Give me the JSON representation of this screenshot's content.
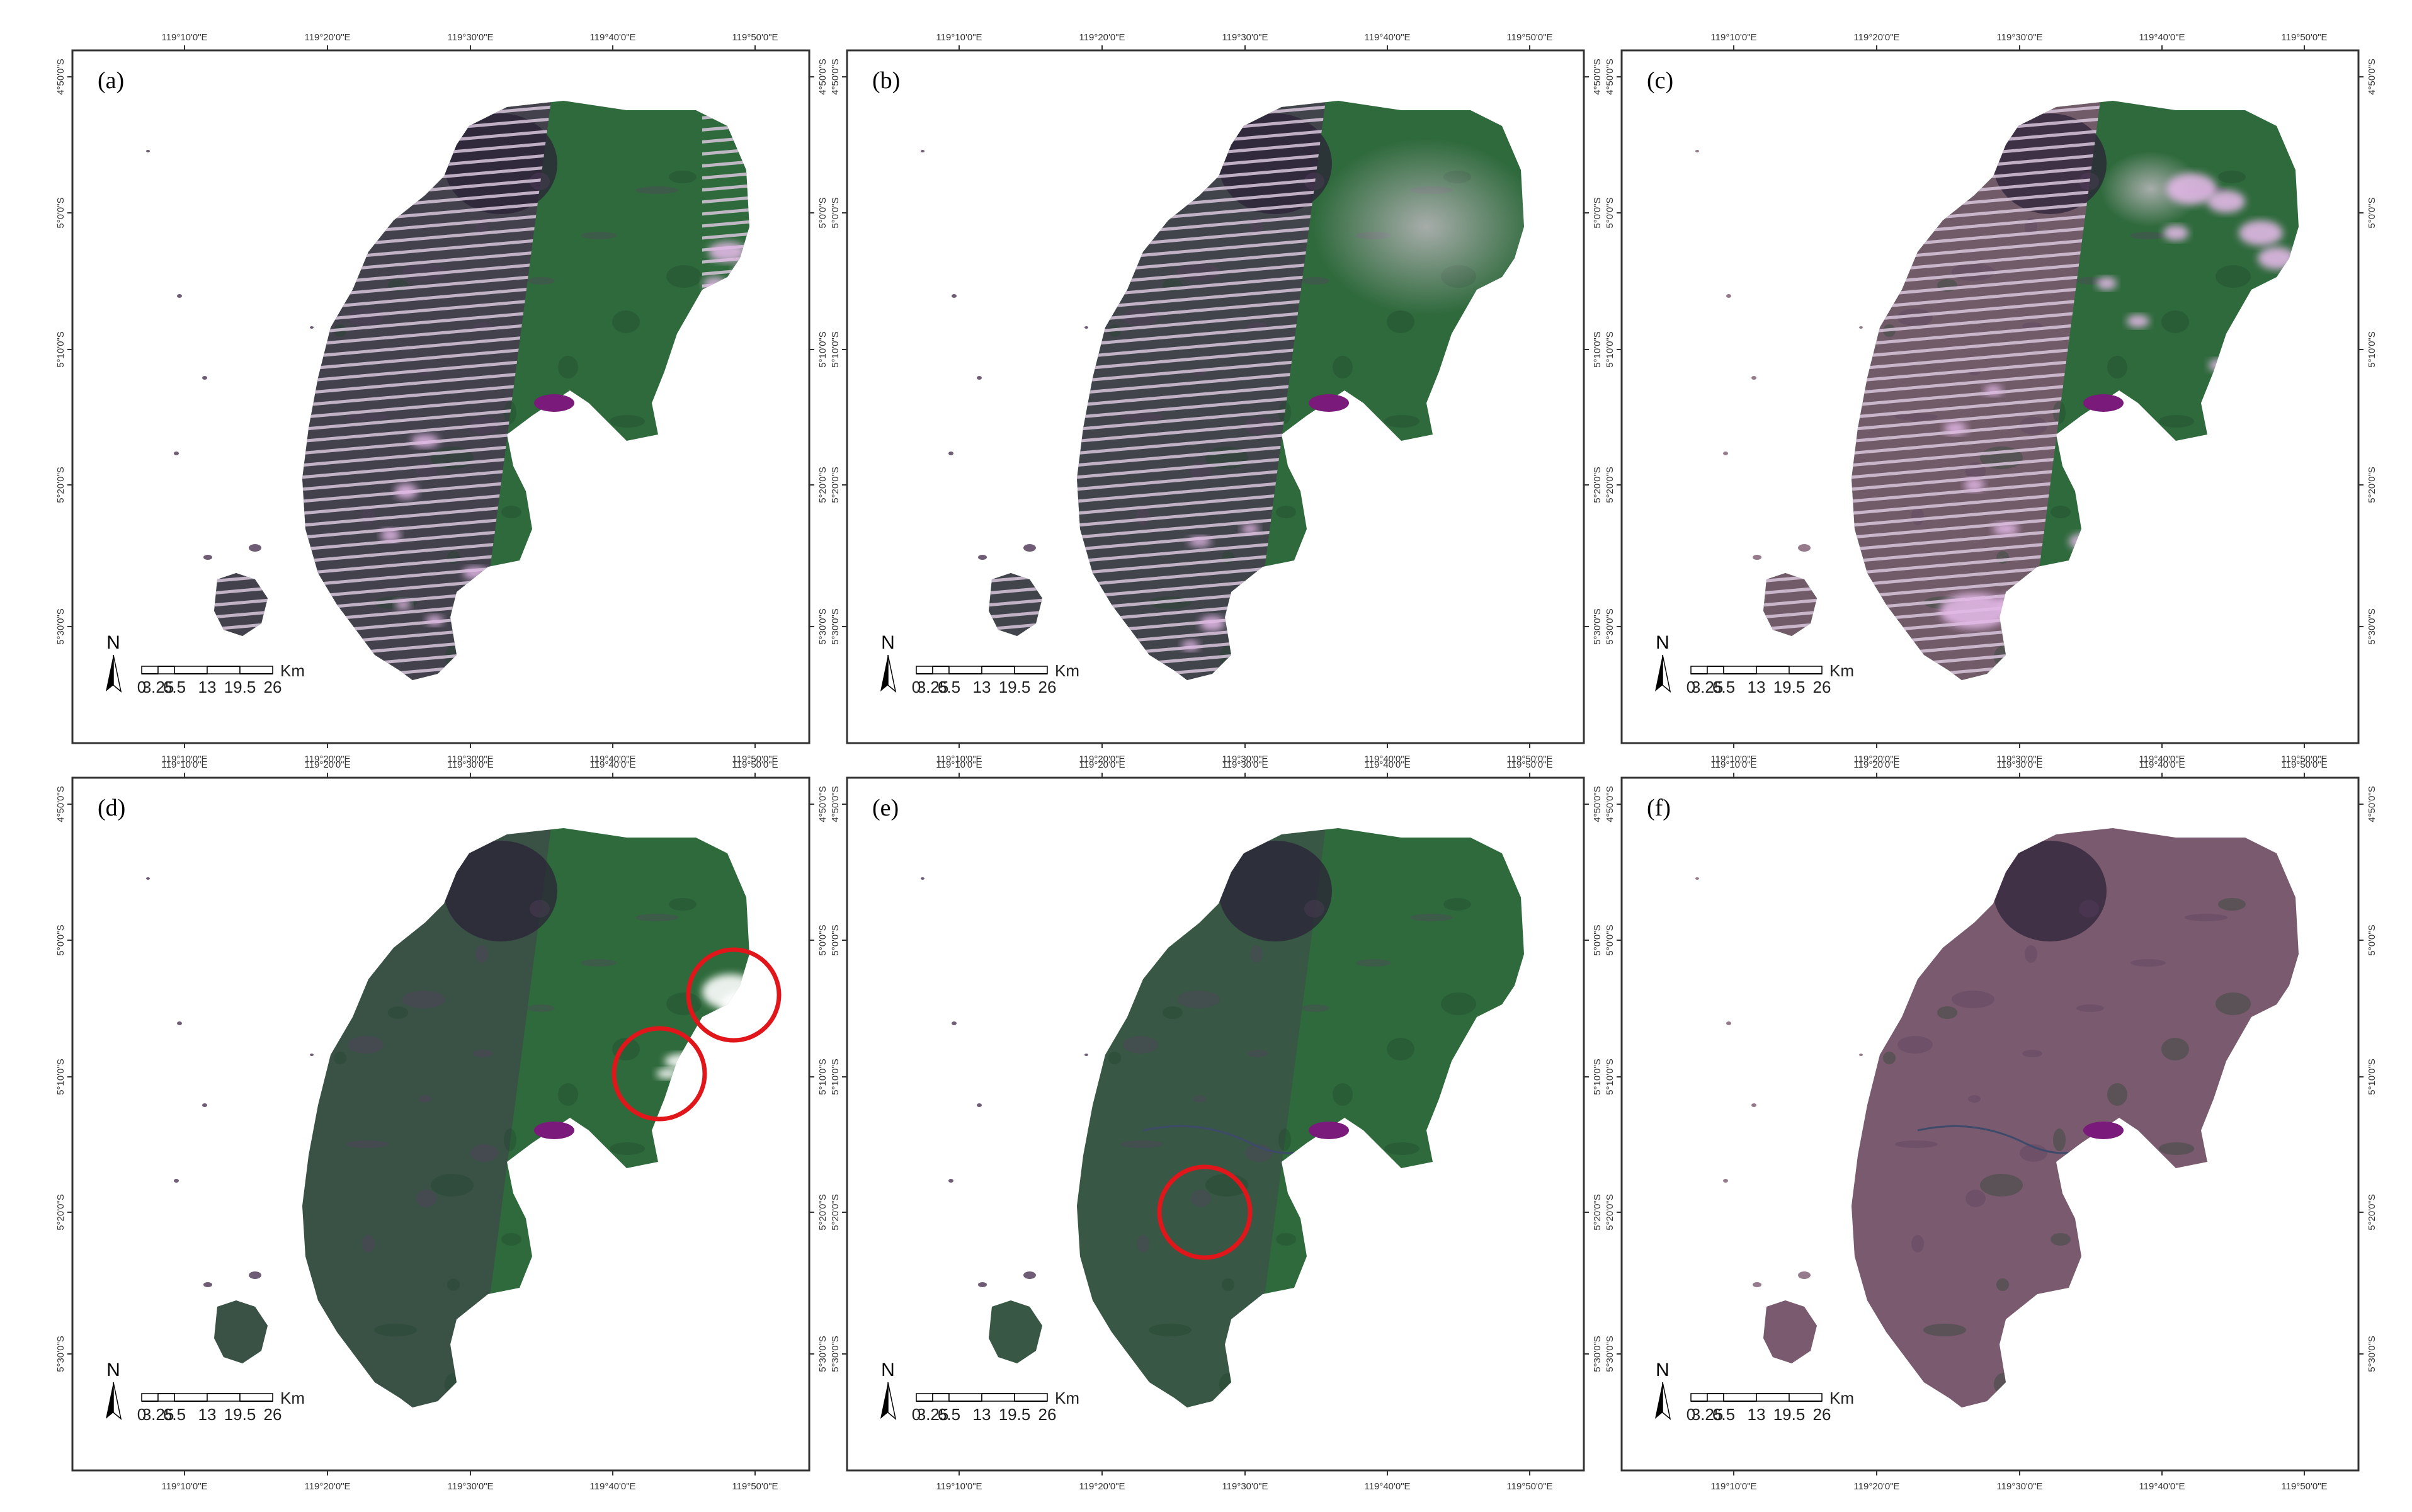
{
  "colors": {
    "land_green": "#2f6a3c",
    "land_purple": "#4a3452",
    "land_mauve": "#7a5a6e",
    "cloud_pink": "#e2b8e6",
    "lake": "#7a1a7a",
    "circle_red": "#e0161b",
    "frame": "#333333"
  },
  "top_ticks": [
    "119°10'0\"E",
    "119°20'0\"E",
    "119°30'0\"E",
    "119°40'0\"E",
    "119°50'0\"E"
  ],
  "bottom_ticks": [
    "119°10'0\"E",
    "119°20'0\"E",
    "119°30'0\"E",
    "119°40'0\"E",
    "119°50'0\"E"
  ],
  "side_ticks": [
    "4°50'0\"S",
    "5°0'0\"S",
    "5°10'0\"S",
    "5°20'0\"S",
    "5°30'0\"S"
  ],
  "scale_bar": {
    "labels": [
      "0",
      "3.25",
      "6.5",
      "13",
      "19.5",
      "26"
    ],
    "unit": "Km"
  },
  "north_label": "N",
  "panels": [
    {
      "label": "(a)",
      "imagery": "gap-striped left half, scattered clouds, east coast clouds"
    },
    {
      "label": "(b)",
      "imagery": "gap-striped left half, haze on right"
    },
    {
      "label": "(c)",
      "imagery": "gap-striped left half, heavy cloud cover"
    },
    {
      "label": "(d)",
      "imagery": "filled image, two cloud-masked areas highlighted"
    },
    {
      "label": "(e)",
      "imagery": "filled image, residual stripes highlighted"
    },
    {
      "label": "(f)",
      "imagery": "final mosaic, mauve tone"
    }
  ],
  "highlight_circles": [
    {
      "panel": 3,
      "count": 2
    },
    {
      "panel": 4,
      "count": 1
    }
  ]
}
